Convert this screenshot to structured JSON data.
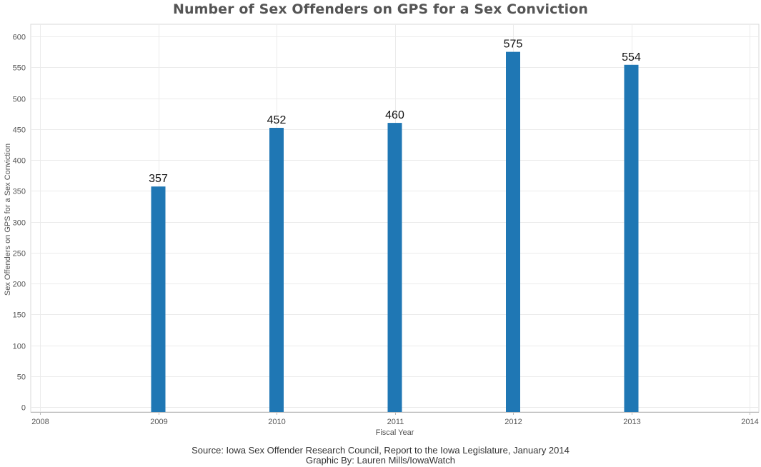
{
  "chart_data": {
    "type": "bar",
    "title": "Number of Sex Offenders on GPS for a Sex Conviction",
    "xlabel": "Fiscal Year",
    "ylabel": "Sex Offenders on GPS for a Sex Conviction",
    "x_ticks": [
      "2008",
      "2009",
      "2010",
      "2011",
      "2012",
      "2013",
      "2014"
    ],
    "categories": [
      "2009",
      "2010",
      "2011",
      "2012",
      "2013"
    ],
    "values": [
      357,
      452,
      460,
      575,
      554
    ],
    "xlim": [
      2008,
      2014
    ],
    "ylim": [
      0,
      600
    ],
    "y_ticks": [
      0,
      50,
      100,
      150,
      200,
      250,
      300,
      350,
      400,
      450,
      500,
      550,
      600
    ],
    "grid": true,
    "legend": "none",
    "bar_color": "#1f77b4"
  },
  "footer": {
    "source": "Source: Iowa Sex Offender Research Council, Report to the Iowa Legislature, January 2014",
    "credit": "Graphic By: Lauren Mills/IowaWatch"
  }
}
